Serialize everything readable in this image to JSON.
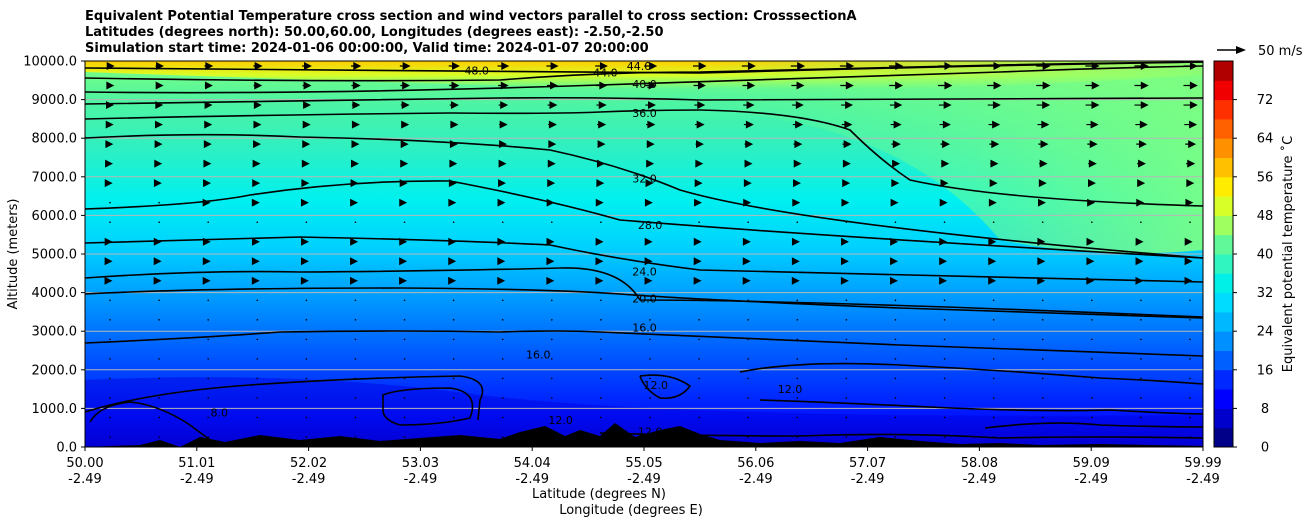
{
  "header": {
    "line1": "Equivalent Potential Temperature cross section and wind vectors parallel to cross section: CrosssectionA",
    "line2": "Latitudes (degrees north): 50.00,60.00, Longitudes (degrees east): -2.50,-2.50",
    "line3": "Simulation start time: 2024-01-06 00:00:00, Valid time: 2024-01-07 20:00:00"
  },
  "chart_data": {
    "type": "heatmap",
    "xlabel": "Latitude (degrees N)",
    "xlabel2": "Longitude (degrees E)",
    "ylabel": "Altitude (meters)",
    "colorbar_label": "Equivalent potential temperature ˚C",
    "ylim": [
      0,
      10000
    ],
    "xlim": [
      50.0,
      59.99
    ],
    "y_ticks": [
      "0.0",
      "1000.0",
      "2000.0",
      "3000.0",
      "4000.0",
      "5000.0",
      "6000.0",
      "7000.0",
      "8000.0",
      "9000.0",
      "10000.0"
    ],
    "x_ticks": [
      {
        "lat": "50.00",
        "lon": "-2.49"
      },
      {
        "lat": "51.01",
        "lon": "-2.49"
      },
      {
        "lat": "52.02",
        "lon": "-2.49"
      },
      {
        "lat": "53.03",
        "lon": "-2.49"
      },
      {
        "lat": "54.04",
        "lon": "-2.49"
      },
      {
        "lat": "55.05",
        "lon": "-2.49"
      },
      {
        "lat": "56.06",
        "lon": "-2.49"
      },
      {
        "lat": "57.07",
        "lon": "-2.49"
      },
      {
        "lat": "58.08",
        "lon": "-2.49"
      },
      {
        "lat": "59.09",
        "lon": "-2.49"
      },
      {
        "lat": "59.99",
        "lon": "-2.49"
      }
    ],
    "colorbar_ticks": [
      "0",
      "8",
      "16",
      "24",
      "32",
      "40",
      "48",
      "56",
      "64",
      "72"
    ],
    "colorbar_range": [
      0,
      80
    ],
    "wind_reference": "50 m/s",
    "contour_labels": [
      {
        "text": "48.0",
        "lat": 53.5,
        "alt": 9750
      },
      {
        "text": "44.0",
        "lat": 54.65,
        "alt": 9700
      },
      {
        "text": "44.0",
        "lat": 54.95,
        "alt": 9870
      },
      {
        "text": "40.0",
        "lat": 55.0,
        "alt": 9400
      },
      {
        "text": "36.0",
        "lat": 55.0,
        "alt": 8650
      },
      {
        "text": "32.0",
        "lat": 55.0,
        "alt": 6950
      },
      {
        "text": "28.0",
        "lat": 55.05,
        "alt": 5750
      },
      {
        "text": "24.0",
        "lat": 55.0,
        "alt": 4550
      },
      {
        "text": "20.0",
        "lat": 55.0,
        "alt": 3850
      },
      {
        "text": "16.0",
        "lat": 55.0,
        "alt": 3100
      },
      {
        "text": "16.0",
        "lat": 54.05,
        "alt": 2400
      },
      {
        "text": "12.0",
        "lat": 55.1,
        "alt": 1600
      },
      {
        "text": "12.0",
        "lat": 56.3,
        "alt": 1500
      },
      {
        "text": "12.0",
        "lat": 54.25,
        "alt": 700
      },
      {
        "text": "12.0",
        "lat": 55.05,
        "alt": 400
      },
      {
        "text": "8.0",
        "lat": 51.2,
        "alt": 900
      }
    ]
  }
}
